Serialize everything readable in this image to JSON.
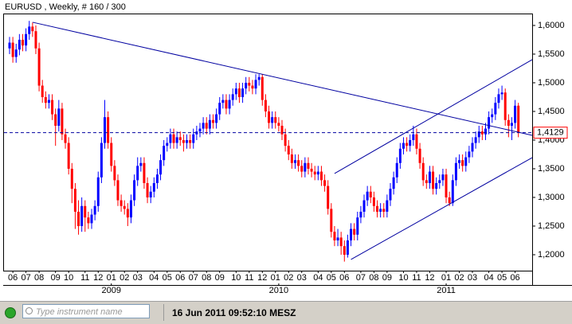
{
  "chart_data": {
    "type": "candlestick",
    "title": "EURUSD , Weekly, # 160 / 300",
    "up_color": "#0000ff",
    "down_color": "#ff0000",
    "open": [
      1.56,
      1.57,
      1.545,
      1.558,
      1.575,
      1.565,
      1.585,
      1.598,
      1.59,
      1.56,
      1.495,
      1.475,
      1.465,
      1.47,
      1.445,
      1.425,
      1.455,
      1.41,
      1.395,
      1.35,
      1.315,
      1.275,
      1.25,
      1.285,
      1.265,
      1.255,
      1.27,
      1.285,
      1.335,
      1.395,
      1.44,
      1.395,
      1.355,
      1.33,
      1.295,
      1.285,
      1.28,
      1.265,
      1.295,
      1.33,
      1.355,
      1.36,
      1.325,
      1.3,
      1.31,
      1.325,
      1.34,
      1.365,
      1.39,
      1.395,
      1.41,
      1.395,
      1.405,
      1.4,
      1.395,
      1.4,
      1.395,
      1.41,
      1.415,
      1.42,
      1.43,
      1.42,
      1.435,
      1.43,
      1.445,
      1.465,
      1.47,
      1.455,
      1.47,
      1.48,
      1.49,
      1.475,
      1.49,
      1.5,
      1.495,
      1.49,
      1.505,
      1.51,
      1.47,
      1.45,
      1.43,
      1.44,
      1.43,
      1.425,
      1.41,
      1.39,
      1.375,
      1.36,
      1.365,
      1.355,
      1.345,
      1.36,
      1.35,
      1.345,
      1.34,
      1.345,
      1.33,
      1.32,
      1.28,
      1.24,
      1.225,
      1.23,
      1.215,
      1.2,
      1.225,
      1.245,
      1.235,
      1.265,
      1.275,
      1.295,
      1.31,
      1.3,
      1.285,
      1.275,
      1.28,
      1.275,
      1.295,
      1.315,
      1.335,
      1.36,
      1.385,
      1.395,
      1.39,
      1.4,
      1.41,
      1.385,
      1.36,
      1.33,
      1.325,
      1.345,
      1.315,
      1.325,
      1.33,
      1.34,
      1.3,
      1.29,
      1.33,
      1.36,
      1.365,
      1.355,
      1.37,
      1.38,
      1.395,
      1.405,
      1.415,
      1.41,
      1.42,
      1.44,
      1.445,
      1.465,
      1.48,
      1.483,
      1.435,
      1.425,
      1.43,
      1.46
    ],
    "high": [
      1.58,
      1.58,
      1.568,
      1.585,
      1.585,
      1.595,
      1.608,
      1.605,
      1.6,
      1.57,
      1.505,
      1.485,
      1.48,
      1.48,
      1.455,
      1.47,
      1.465,
      1.42,
      1.405,
      1.36,
      1.325,
      1.295,
      1.3,
      1.295,
      1.275,
      1.28,
      1.295,
      1.345,
      1.405,
      1.47,
      1.45,
      1.405,
      1.365,
      1.34,
      1.305,
      1.295,
      1.29,
      1.305,
      1.34,
      1.37,
      1.37,
      1.37,
      1.335,
      1.32,
      1.335,
      1.35,
      1.375,
      1.4,
      1.405,
      1.42,
      1.42,
      1.415,
      1.415,
      1.41,
      1.41,
      1.41,
      1.42,
      1.425,
      1.43,
      1.44,
      1.44,
      1.445,
      1.445,
      1.455,
      1.475,
      1.48,
      1.48,
      1.48,
      1.49,
      1.5,
      1.5,
      1.5,
      1.51,
      1.51,
      1.505,
      1.515,
      1.515,
      1.515,
      1.48,
      1.46,
      1.45,
      1.45,
      1.44,
      1.435,
      1.42,
      1.4,
      1.385,
      1.375,
      1.375,
      1.365,
      1.37,
      1.37,
      1.36,
      1.355,
      1.355,
      1.355,
      1.34,
      1.33,
      1.29,
      1.25,
      1.245,
      1.24,
      1.225,
      1.235,
      1.255,
      1.255,
      1.275,
      1.285,
      1.305,
      1.32,
      1.32,
      1.31,
      1.295,
      1.29,
      1.29,
      1.305,
      1.325,
      1.345,
      1.37,
      1.395,
      1.405,
      1.405,
      1.41,
      1.425,
      1.42,
      1.395,
      1.37,
      1.34,
      1.355,
      1.355,
      1.335,
      1.34,
      1.35,
      1.35,
      1.31,
      1.34,
      1.37,
      1.375,
      1.375,
      1.38,
      1.39,
      1.405,
      1.415,
      1.425,
      1.425,
      1.43,
      1.45,
      1.455,
      1.475,
      1.49,
      1.495,
      1.49,
      1.445,
      1.44,
      1.47,
      1.465
    ],
    "low": [
      1.55,
      1.535,
      1.535,
      1.548,
      1.555,
      1.555,
      1.575,
      1.58,
      1.55,
      1.485,
      1.465,
      1.455,
      1.455,
      1.435,
      1.39,
      1.415,
      1.4,
      1.385,
      1.34,
      1.29,
      1.245,
      1.235,
      1.24,
      1.24,
      1.245,
      1.245,
      1.26,
      1.275,
      1.325,
      1.385,
      1.385,
      1.345,
      1.32,
      1.285,
      1.275,
      1.27,
      1.25,
      1.255,
      1.285,
      1.32,
      1.345,
      1.315,
      1.29,
      1.29,
      1.3,
      1.315,
      1.33,
      1.355,
      1.38,
      1.385,
      1.385,
      1.385,
      1.39,
      1.38,
      1.385,
      1.385,
      1.385,
      1.4,
      1.405,
      1.41,
      1.41,
      1.41,
      1.42,
      1.42,
      1.435,
      1.455,
      1.445,
      1.445,
      1.46,
      1.47,
      1.465,
      1.465,
      1.48,
      1.485,
      1.48,
      1.48,
      1.495,
      1.46,
      1.44,
      1.42,
      1.42,
      1.42,
      1.415,
      1.4,
      1.38,
      1.365,
      1.35,
      1.35,
      1.345,
      1.335,
      1.335,
      1.34,
      1.335,
      1.33,
      1.33,
      1.32,
      1.31,
      1.27,
      1.23,
      1.215,
      1.215,
      1.2,
      1.188,
      1.195,
      1.215,
      1.225,
      1.225,
      1.255,
      1.265,
      1.285,
      1.29,
      1.275,
      1.265,
      1.265,
      1.265,
      1.265,
      1.285,
      1.305,
      1.325,
      1.35,
      1.375,
      1.38,
      1.38,
      1.39,
      1.375,
      1.35,
      1.32,
      1.315,
      1.315,
      1.305,
      1.305,
      1.315,
      1.32,
      1.29,
      1.285,
      1.285,
      1.32,
      1.35,
      1.345,
      1.345,
      1.36,
      1.37,
      1.385,
      1.395,
      1.4,
      1.4,
      1.41,
      1.43,
      1.435,
      1.455,
      1.47,
      1.425,
      1.405,
      1.4,
      1.42,
      1.405
    ],
    "close": [
      1.57,
      1.545,
      1.558,
      1.575,
      1.565,
      1.585,
      1.598,
      1.59,
      1.56,
      1.495,
      1.475,
      1.465,
      1.47,
      1.445,
      1.425,
      1.455,
      1.41,
      1.395,
      1.35,
      1.315,
      1.275,
      1.25,
      1.285,
      1.265,
      1.255,
      1.27,
      1.285,
      1.335,
      1.395,
      1.44,
      1.395,
      1.355,
      1.33,
      1.295,
      1.285,
      1.28,
      1.265,
      1.295,
      1.33,
      1.355,
      1.36,
      1.325,
      1.3,
      1.31,
      1.325,
      1.34,
      1.365,
      1.39,
      1.395,
      1.41,
      1.395,
      1.405,
      1.4,
      1.395,
      1.4,
      1.395,
      1.41,
      1.415,
      1.42,
      1.43,
      1.42,
      1.435,
      1.43,
      1.445,
      1.465,
      1.47,
      1.455,
      1.47,
      1.48,
      1.49,
      1.475,
      1.49,
      1.5,
      1.495,
      1.49,
      1.505,
      1.51,
      1.47,
      1.45,
      1.43,
      1.44,
      1.43,
      1.425,
      1.41,
      1.39,
      1.375,
      1.36,
      1.365,
      1.355,
      1.345,
      1.36,
      1.35,
      1.345,
      1.34,
      1.345,
      1.33,
      1.32,
      1.28,
      1.24,
      1.225,
      1.23,
      1.215,
      1.2,
      1.225,
      1.245,
      1.235,
      1.265,
      1.275,
      1.295,
      1.31,
      1.3,
      1.285,
      1.275,
      1.28,
      1.275,
      1.295,
      1.315,
      1.335,
      1.36,
      1.385,
      1.395,
      1.39,
      1.4,
      1.41,
      1.385,
      1.36,
      1.33,
      1.325,
      1.345,
      1.315,
      1.325,
      1.33,
      1.34,
      1.3,
      1.29,
      1.33,
      1.36,
      1.365,
      1.355,
      1.37,
      1.38,
      1.395,
      1.405,
      1.415,
      1.41,
      1.42,
      1.44,
      1.445,
      1.465,
      1.48,
      1.483,
      1.435,
      1.425,
      1.43,
      1.46,
      1.413
    ],
    "xlim": [
      -1.7,
      159.2
    ],
    "ylim": [
      1.1722,
      1.6194
    ],
    "yticks": [
      {
        "value": 1.2,
        "label": "1,2000"
      },
      {
        "value": 1.25,
        "label": "1,2500"
      },
      {
        "value": 1.3,
        "label": "1,3000"
      },
      {
        "value": 1.35,
        "label": "1,3500"
      },
      {
        "value": 1.4,
        "label": "1,4000"
      },
      {
        "value": 1.45,
        "label": "1,4500"
      },
      {
        "value": 1.5,
        "label": "1,5000"
      },
      {
        "value": 1.55,
        "label": "1,5500"
      },
      {
        "value": 1.6,
        "label": "1,6000"
      }
    ],
    "xticks": [
      {
        "value": 1,
        "label": "06"
      },
      {
        "value": 5,
        "label": "07"
      },
      {
        "value": 9,
        "label": "08"
      },
      {
        "value": 14,
        "label": "09"
      },
      {
        "value": 18,
        "label": "10"
      },
      {
        "value": 23,
        "label": "11"
      },
      {
        "value": 27,
        "label": "12"
      },
      {
        "value": 31,
        "label": "01"
      },
      {
        "value": 35,
        "label": "02"
      },
      {
        "value": 39,
        "label": "03"
      },
      {
        "value": 44,
        "label": "04"
      },
      {
        "value": 48,
        "label": "05"
      },
      {
        "value": 52,
        "label": "06"
      },
      {
        "value": 56,
        "label": "07"
      },
      {
        "value": 60,
        "label": "08"
      },
      {
        "value": 64,
        "label": "09"
      },
      {
        "value": 69,
        "label": "10"
      },
      {
        "value": 73,
        "label": "11"
      },
      {
        "value": 77,
        "label": "12"
      },
      {
        "value": 81,
        "label": "01"
      },
      {
        "value": 85,
        "label": "02"
      },
      {
        "value": 89,
        "label": "03"
      },
      {
        "value": 94,
        "label": "04"
      },
      {
        "value": 98,
        "label": "05"
      },
      {
        "value": 102,
        "label": "06"
      },
      {
        "value": 107,
        "label": "07"
      },
      {
        "value": 111,
        "label": "08"
      },
      {
        "value": 115,
        "label": "09"
      },
      {
        "value": 120,
        "label": "10"
      },
      {
        "value": 124,
        "label": "11"
      },
      {
        "value": 128,
        "label": "12"
      },
      {
        "value": 133,
        "label": "01"
      },
      {
        "value": 137,
        "label": "02"
      },
      {
        "value": 141,
        "label": "03"
      },
      {
        "value": 146,
        "label": "04"
      },
      {
        "value": 150,
        "label": "05"
      },
      {
        "value": 154,
        "label": "06"
      }
    ],
    "year_ticks": [
      {
        "value": 31,
        "label": "2009"
      },
      {
        "value": 82,
        "label": "2010"
      },
      {
        "value": 133,
        "label": "2011"
      }
    ],
    "last_price": {
      "value": 1.4129,
      "label": "1,4129"
    },
    "trend_lines": [
      {
        "x": [
          7,
          159.2
        ],
        "y": [
          1.6056,
          1.4083
        ]
      },
      {
        "x": [
          99,
          159.2
        ],
        "y": [
          1.3417,
          1.5403
        ]
      },
      {
        "x": [
          104,
          159.2
        ],
        "y": [
          1.1917,
          1.3694
        ]
      }
    ],
    "line_color": "#0000a0"
  },
  "status_bar": {
    "search_placeholder": "Type instrument name",
    "timestamp": "16 Jun 2011 09:52:10 MESZ"
  }
}
